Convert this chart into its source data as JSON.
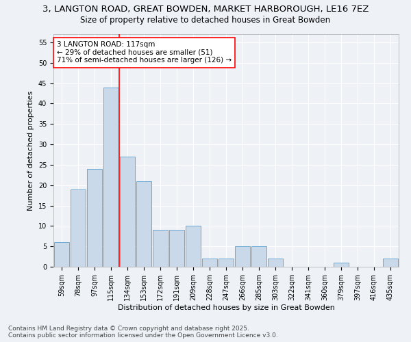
{
  "title": "3, LANGTON ROAD, GREAT BOWDEN, MARKET HARBOROUGH, LE16 7EZ",
  "subtitle": "Size of property relative to detached houses in Great Bowden",
  "xlabel": "Distribution of detached houses by size in Great Bowden",
  "ylabel": "Number of detached properties",
  "categories": [
    "59sqm",
    "78sqm",
    "97sqm",
    "115sqm",
    "134sqm",
    "153sqm",
    "172sqm",
    "191sqm",
    "209sqm",
    "228sqm",
    "247sqm",
    "266sqm",
    "285sqm",
    "303sqm",
    "322sqm",
    "341sqm",
    "360sqm",
    "379sqm",
    "397sqm",
    "416sqm",
    "435sqm"
  ],
  "values": [
    6,
    19,
    24,
    44,
    27,
    21,
    9,
    9,
    10,
    2,
    2,
    5,
    5,
    2,
    0,
    0,
    0,
    1,
    0,
    0,
    2
  ],
  "bar_color": "#c9d9ea",
  "bar_edge_color": "#6aaad4",
  "property_line_x": 3.5,
  "annotation_text": "3 LANGTON ROAD: 117sqm\n← 29% of detached houses are smaller (51)\n71% of semi-detached houses are larger (126) →",
  "annotation_box_color": "white",
  "annotation_box_edge_color": "red",
  "red_line_color": "red",
  "ylim": [
    0,
    57
  ],
  "yticks": [
    0,
    5,
    10,
    15,
    20,
    25,
    30,
    35,
    40,
    45,
    50,
    55
  ],
  "background_color": "#eef2f7",
  "grid_color": "white",
  "footer_line1": "Contains HM Land Registry data © Crown copyright and database right 2025.",
  "footer_line2": "Contains public sector information licensed under the Open Government Licence v3.0.",
  "title_fontsize": 9.5,
  "subtitle_fontsize": 8.5,
  "axis_label_fontsize": 8,
  "tick_fontsize": 7,
  "annotation_fontsize": 7.5,
  "footer_fontsize": 6.5
}
